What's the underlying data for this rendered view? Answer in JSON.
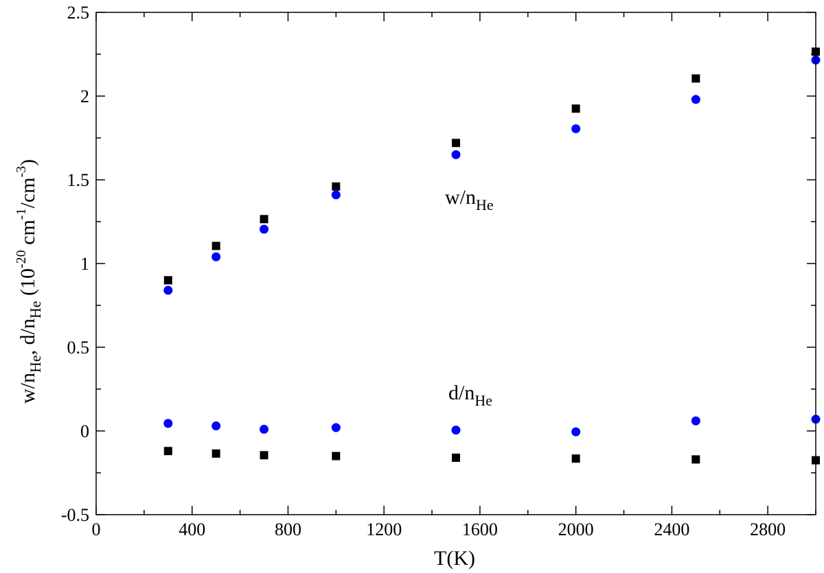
{
  "chart_data": {
    "type": "scatter",
    "x_axis": {
      "range": [
        0,
        3000
      ],
      "ticks": [
        0,
        400,
        800,
        1200,
        1600,
        2000,
        2400,
        2800
      ],
      "tick_labels": [
        "0",
        "400",
        "800",
        "1200",
        "1600",
        "2000",
        "2400",
        "2800"
      ],
      "minor_step": 200,
      "label": "T(K)"
    },
    "y_axis": {
      "range": [
        -0.5,
        2.5
      ],
      "ticks": [
        -0.5,
        0,
        0.5,
        1,
        1.5,
        2,
        2.5
      ],
      "tick_labels": [
        "-0.5",
        "0",
        "0.5",
        "1",
        "1.5",
        "2",
        "2.5"
      ],
      "minor_step": 0.25,
      "label": {
        "p1": "w/n",
        "s1": "He",
        "p2": ", d/n",
        "s2": "He",
        "p3": " (10",
        "e1": "-20",
        "p4": " cm",
        "e2": "-1",
        "p5": "/cm",
        "e3": "-3",
        "p6": ")"
      }
    },
    "grid": false,
    "legend": "none",
    "annotations": {
      "w": {
        "main": "w/n",
        "sub": "He"
      },
      "d": {
        "main": "d/n",
        "sub": "He"
      }
    },
    "series": [
      {
        "marker": "square",
        "color": "#000000",
        "points": [
          [
            300,
            0.9
          ],
          [
            500,
            1.105
          ],
          [
            700,
            1.265
          ],
          [
            1000,
            1.46
          ],
          [
            1500,
            1.72
          ],
          [
            2000,
            1.925
          ],
          [
            2500,
            2.105
          ],
          [
            3000,
            2.265
          ],
          [
            300,
            -0.12
          ],
          [
            500,
            -0.135
          ],
          [
            700,
            -0.145
          ],
          [
            1000,
            -0.15
          ],
          [
            1500,
            -0.16
          ],
          [
            2000,
            -0.165
          ],
          [
            2500,
            -0.17
          ],
          [
            3000,
            -0.175
          ]
        ]
      },
      {
        "marker": "circle",
        "color": "#0000ff",
        "points": [
          [
            300,
            0.84
          ],
          [
            500,
            1.04
          ],
          [
            700,
            1.205
          ],
          [
            1000,
            1.41
          ],
          [
            1500,
            1.65
          ],
          [
            2000,
            1.805
          ],
          [
            2500,
            1.98
          ],
          [
            3000,
            2.215
          ],
          [
            300,
            0.045
          ],
          [
            500,
            0.03
          ],
          [
            700,
            0.01
          ],
          [
            1000,
            0.02
          ],
          [
            1500,
            0.005
          ],
          [
            2000,
            -0.005
          ],
          [
            2500,
            0.06
          ],
          [
            3000,
            0.07
          ]
        ]
      }
    ]
  }
}
